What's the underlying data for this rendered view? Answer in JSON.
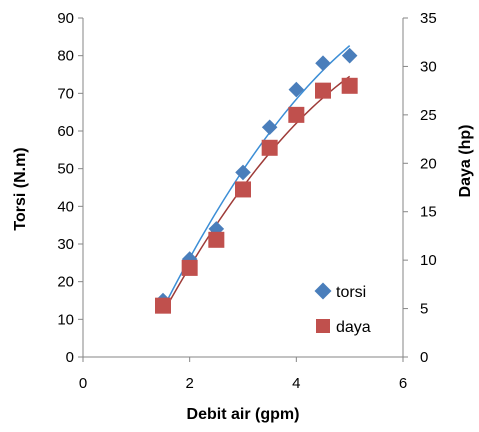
{
  "chart_data": {
    "type": "scatter",
    "xlabel": "Debit air (gpm)",
    "ylabel_left": "Torsi (N.m)",
    "ylabel_right": "Daya (hp)",
    "xlim": [
      0,
      6
    ],
    "ylim_left": [
      0,
      90
    ],
    "ylim_right": [
      0,
      35
    ],
    "x_ticks": [
      "0",
      "2",
      "4",
      "6"
    ],
    "y_left_ticks": [
      "0",
      "10",
      "20",
      "30",
      "40",
      "50",
      "60",
      "70",
      "80",
      "90"
    ],
    "y_right_ticks": [
      "0",
      "5",
      "10",
      "15",
      "20",
      "25",
      "30",
      "35"
    ],
    "grid": false,
    "legend_position": "bottom-right",
    "series": [
      {
        "name": "torsi",
        "axis": "left",
        "marker": "diamond",
        "color": "#4A7EBB",
        "trend_color": "#3C8ED6",
        "x": [
          1.5,
          2.0,
          2.5,
          3.0,
          3.5,
          4.0,
          4.5,
          5.0
        ],
        "y": [
          15,
          26,
          34,
          49,
          61,
          71,
          78,
          80
        ]
      },
      {
        "name": "daya",
        "axis": "right",
        "marker": "square",
        "color": "#C0504D",
        "trend_color": "#9E3B38",
        "x": [
          1.5,
          2.0,
          2.5,
          3.0,
          3.5,
          4.0,
          4.5,
          5.0
        ],
        "y": [
          5.3,
          9.2,
          12.1,
          17.3,
          21.6,
          25.0,
          27.5,
          28.0
        ]
      }
    ]
  }
}
